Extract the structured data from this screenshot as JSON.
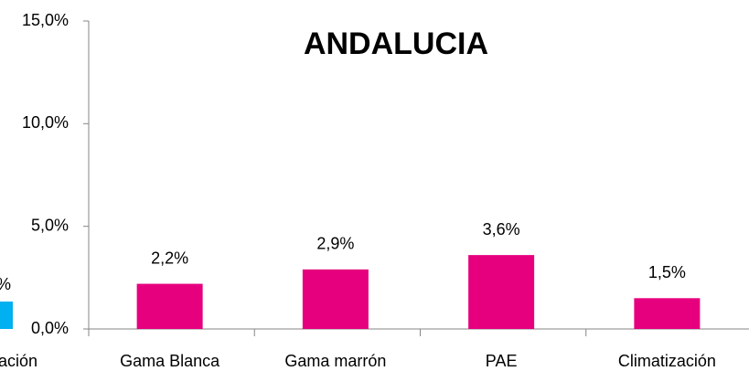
{
  "chart_data": {
    "type": "bar",
    "title": "ANDALUCIA",
    "categories": [
      "Gama Blanca",
      "Gama marrón",
      "PAE",
      "Climatización"
    ],
    "values": [
      2.2,
      2.9,
      3.6,
      1.5
    ],
    "value_labels": [
      "2,2%",
      "2,9%",
      "3,6%",
      "1,5%"
    ],
    "color": "#e6007e",
    "ylim": [
      0,
      15
    ],
    "yticks": [
      {
        "value": 0,
        "label": "0,0%"
      },
      {
        "value": 5,
        "label": "5,0%"
      },
      {
        "value": 10,
        "label": "10,0%"
      },
      {
        "value": 15,
        "label": "15,0%"
      }
    ],
    "grid": false
  },
  "clipped_fragments": [
    "%",
    "ación"
  ]
}
